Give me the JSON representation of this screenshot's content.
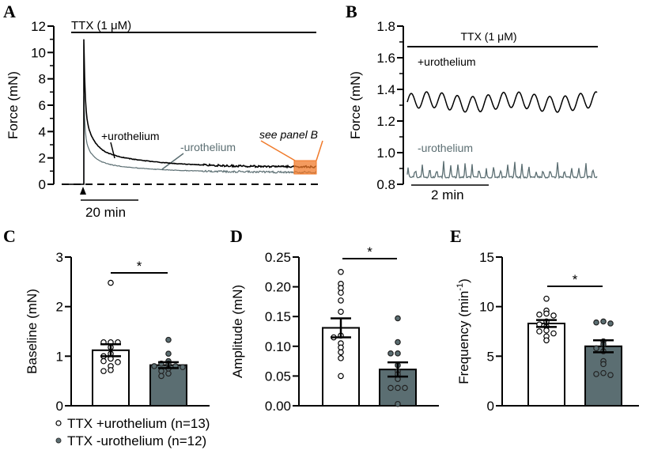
{
  "colors": {
    "plus": "#000000",
    "minus": "#5b6e72",
    "bar_plus": "#ffffff",
    "bar_minus": "#5b6e72",
    "highlight": "#f07a2a"
  },
  "legend": [
    {
      "marker": "open-circle",
      "label": "TTX +urothelium (n=13)"
    },
    {
      "marker": "filled-circle",
      "label": "TTX -urothelium (n=12)"
    }
  ],
  "chart_data": [
    {
      "panel": "A",
      "type": "line",
      "ylabel": "Force (mN)",
      "ylim": [
        0,
        12
      ],
      "yticks": [
        "0",
        "2",
        "4",
        "6",
        "8",
        "10",
        "12"
      ],
      "treatment": "TTX (1 μM)",
      "scale_bar": "20 min",
      "annotation": "see panel B",
      "series": [
        {
          "name": "+urothelium",
          "peak": 11.0,
          "plateau": 1.3
        },
        {
          "name": "-urothelium",
          "peak": 6.7,
          "plateau": 0.9
        }
      ],
      "baseline": 0
    },
    {
      "panel": "B",
      "type": "line",
      "ylabel": "Force (mN)",
      "ylim": [
        0.8,
        1.8
      ],
      "yticks": [
        "0.8",
        "1.0",
        "1.2",
        "1.4",
        "1.6",
        "1.8"
      ],
      "treatment": "TTX (1 μM)",
      "scale_bar": "2 min",
      "series": [
        {
          "name": "+urothelium",
          "mean": 1.32,
          "range": [
            1.25,
            1.41
          ]
        },
        {
          "name": "-urothelium",
          "mean": 0.85,
          "range": [
            0.82,
            0.95
          ]
        }
      ]
    },
    {
      "panel": "C",
      "type": "bar",
      "ylabel": "Baseline (mN)",
      "ylim": [
        0,
        3
      ],
      "yticks": [
        "0",
        "1",
        "2",
        "3"
      ],
      "significance": "*",
      "series": [
        {
          "name": "TTX +urothelium (n=13)",
          "mean": 1.12,
          "sem": 0.12,
          "points": [
            2.48,
            1.28,
            1.28,
            1.28,
            1.18,
            1.05,
            1.0,
            0.95,
            0.9,
            0.88,
            0.8,
            0.72,
            0.7
          ]
        },
        {
          "name": "TTX -urothelium (n=12)",
          "mean": 0.82,
          "sem": 0.06,
          "points": [
            1.33,
            1.05,
            0.9,
            0.85,
            0.85,
            0.8,
            0.8,
            0.78,
            0.75,
            0.7,
            0.65,
            0.6
          ]
        }
      ]
    },
    {
      "panel": "D",
      "type": "bar",
      "ylabel": "Amplitude (mN)",
      "ylim": [
        0,
        0.25
      ],
      "yticks": [
        "0.00",
        "0.05",
        "0.10",
        "0.15",
        "0.20",
        "0.25"
      ],
      "significance": "*",
      "series": [
        {
          "name": "TTX +urothelium (n=13)",
          "mean": 0.131,
          "sem": 0.016,
          "points": [
            0.225,
            0.205,
            0.198,
            0.19,
            0.177,
            0.158,
            0.118,
            0.115,
            0.105,
            0.098,
            0.09,
            0.08,
            0.05
          ]
        },
        {
          "name": "TTX -urothelium (n=12)",
          "mean": 0.061,
          "sem": 0.012,
          "points": [
            0.147,
            0.107,
            0.088,
            0.088,
            0.068,
            0.058,
            0.053,
            0.045,
            0.03,
            0.03,
            0.03,
            0.003
          ]
        }
      ]
    },
    {
      "panel": "E",
      "type": "bar",
      "ylabel": "Frequency (min",
      "ylabel_sup": "-1",
      "ylabel_end": ")",
      "ylim": [
        0,
        15
      ],
      "yticks": [
        "0",
        "5",
        "10",
        "15"
      ],
      "significance": "*",
      "series": [
        {
          "name": "TTX +urothelium (n=13)",
          "mean": 8.3,
          "sem": 0.35,
          "points": [
            10.8,
            9.6,
            9.3,
            9.2,
            9.1,
            8.5,
            8.2,
            8.0,
            7.6,
            7.5,
            7.3,
            7.0,
            6.6
          ]
        },
        {
          "name": "TTX -urothelium (n=12)",
          "mean": 6.0,
          "sem": 0.6,
          "points": [
            8.5,
            8.4,
            8.3,
            6.5,
            6.2,
            5.8,
            5.5,
            4.5,
            4.2,
            3.3,
            3.2,
            3.1
          ]
        }
      ]
    }
  ]
}
